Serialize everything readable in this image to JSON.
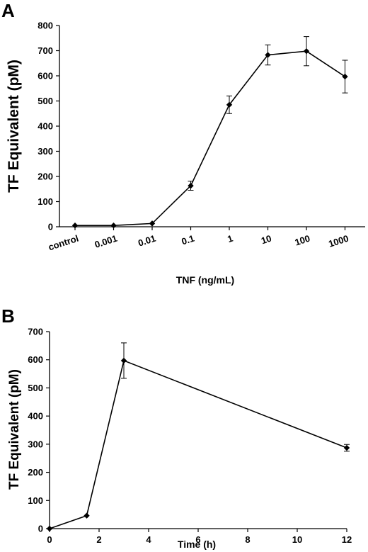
{
  "chart_data": [
    {
      "panel": "A",
      "type": "line",
      "xlabel": "TNF  (ng/mL)",
      "ylabel": "TF Equivalent  (pM)",
      "categories": [
        "control",
        "0.001",
        "0.01",
        "0.1",
        "1",
        "10",
        "100",
        "1000"
      ],
      "values": [
        5,
        5,
        13,
        163,
        485,
        683,
        698,
        597
      ],
      "errors": [
        0,
        0,
        0,
        18,
        35,
        40,
        58,
        65
      ],
      "ylim": [
        0,
        800
      ],
      "yticks": [
        0,
        100,
        200,
        300,
        400,
        500,
        600,
        700,
        800
      ],
      "marker": "diamond",
      "grid": false
    },
    {
      "panel": "B",
      "type": "line",
      "xlabel": "Time (h)",
      "ylabel": "TF Equivalent (pM)",
      "x": [
        0,
        1.5,
        3,
        12
      ],
      "values": [
        0,
        46,
        597,
        287
      ],
      "errors": [
        0,
        0,
        63,
        12
      ],
      "xlim": [
        0,
        12
      ],
      "xticks": [
        0,
        2,
        4,
        6,
        8,
        10,
        12
      ],
      "ylim": [
        0,
        700
      ],
      "yticks": [
        0,
        100,
        200,
        300,
        400,
        500,
        600,
        700
      ],
      "marker": "diamond",
      "grid": false
    }
  ]
}
